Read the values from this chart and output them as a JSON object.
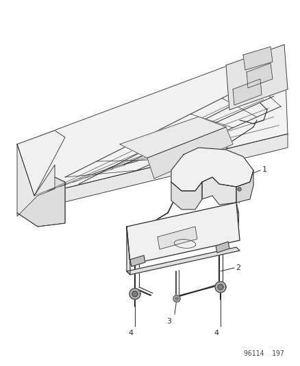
{
  "fig_width": 4.39,
  "fig_height": 5.33,
  "dpi": 100,
  "bg_color": "#ffffff",
  "line_color": "#2a2a2a",
  "line_width": 0.6,
  "watermark": "96114  197",
  "watermark_fontsize": 7,
  "label_fontsize": 8
}
